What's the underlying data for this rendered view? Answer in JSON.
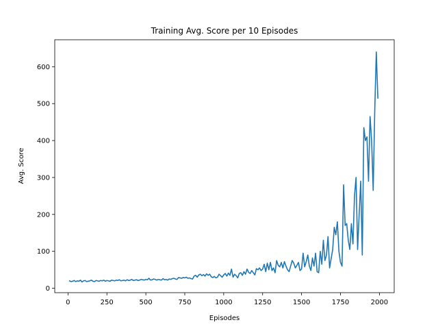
{
  "chart_data": {
    "type": "line",
    "title": "Training Avg. Score per 10 Episodes",
    "xlabel": "Episodes",
    "ylabel": "Avg. Score",
    "xlim": [
      -85,
      2095
    ],
    "ylim": [
      -12,
      673
    ],
    "xticks": [
      0,
      250,
      500,
      750,
      1000,
      1250,
      1500,
      1750,
      2000
    ],
    "yticks": [
      0,
      100,
      200,
      300,
      400,
      500,
      600
    ],
    "grid": false,
    "legend": "none",
    "series": [
      {
        "color": "#1f77b4",
        "x": [
          10,
          20,
          30,
          40,
          50,
          60,
          70,
          80,
          90,
          100,
          110,
          120,
          130,
          140,
          150,
          160,
          170,
          180,
          190,
          200,
          210,
          220,
          230,
          240,
          250,
          260,
          270,
          280,
          290,
          300,
          310,
          320,
          330,
          340,
          350,
          360,
          370,
          380,
          390,
          400,
          410,
          420,
          430,
          440,
          450,
          460,
          470,
          480,
          490,
          500,
          510,
          520,
          530,
          540,
          550,
          560,
          570,
          580,
          590,
          600,
          610,
          620,
          630,
          640,
          650,
          660,
          670,
          680,
          690,
          700,
          710,
          720,
          730,
          740,
          750,
          760,
          770,
          780,
          790,
          800,
          810,
          820,
          830,
          840,
          850,
          860,
          870,
          880,
          890,
          900,
          910,
          920,
          930,
          940,
          950,
          960,
          970,
          980,
          990,
          1000,
          1010,
          1020,
          1030,
          1040,
          1050,
          1060,
          1070,
          1080,
          1090,
          1100,
          1110,
          1120,
          1130,
          1140,
          1150,
          1160,
          1170,
          1180,
          1190,
          1200,
          1210,
          1220,
          1230,
          1240,
          1250,
          1260,
          1270,
          1280,
          1290,
          1300,
          1310,
          1320,
          1330,
          1340,
          1350,
          1360,
          1370,
          1380,
          1390,
          1400,
          1410,
          1420,
          1430,
          1440,
          1450,
          1460,
          1470,
          1480,
          1490,
          1500,
          1510,
          1520,
          1530,
          1540,
          1550,
          1560,
          1570,
          1580,
          1590,
          1600,
          1610,
          1620,
          1630,
          1640,
          1650,
          1660,
          1670,
          1680,
          1690,
          1700,
          1710,
          1720,
          1730,
          1740,
          1750,
          1760,
          1770,
          1780,
          1790,
          1800,
          1810,
          1820,
          1830,
          1840,
          1850,
          1860,
          1870,
          1880,
          1890,
          1900,
          1910,
          1920,
          1930,
          1940,
          1950,
          1960,
          1970,
          1980,
          1990
        ],
        "y": [
          20,
          18,
          19,
          21,
          18,
          20,
          19,
          22,
          17,
          20,
          21,
          18,
          19,
          20,
          22,
          19,
          18,
          21,
          20,
          19,
          21,
          20,
          22,
          19,
          21,
          20,
          19,
          22,
          21,
          20,
          22,
          21,
          23,
          20,
          21,
          22,
          20,
          23,
          21,
          22,
          24,
          21,
          22,
          23,
          21,
          22,
          24,
          23,
          22,
          24,
          23,
          27,
          22,
          23,
          25,
          24,
          22,
          24,
          23,
          22,
          26,
          23,
          24,
          22,
          25,
          24,
          26,
          27,
          25,
          24,
          29,
          28,
          27,
          29,
          28,
          30,
          27,
          28,
          26,
          25,
          33,
          35,
          30,
          36,
          38,
          34,
          37,
          33,
          39,
          35,
          38,
          31,
          29,
          32,
          28,
          30,
          38,
          34,
          30,
          36,
          40,
          33,
          41,
          35,
          52,
          30,
          38,
          34,
          28,
          40,
          42,
          35,
          45,
          38,
          52,
          43,
          40,
          48,
          42,
          36,
          53,
          50,
          55,
          48,
          52,
          65,
          45,
          68,
          50,
          70,
          48,
          55,
          42,
          75,
          62,
          58,
          70,
          55,
          72,
          60,
          50,
          45,
          60,
          75,
          68,
          55,
          62,
          70,
          48,
          52,
          95,
          58,
          72,
          90,
          60,
          48,
          82,
          60,
          95,
          45,
          42,
          100,
          65,
          130,
          75,
          90,
          140,
          55,
          80,
          105,
          165,
          145,
          180,
          100,
          70,
          60,
          280,
          170,
          175,
          130,
          105,
          175,
          120,
          250,
          300,
          105,
          200,
          290,
          90,
          435,
          400,
          410,
          290,
          465,
          400,
          265,
          480,
          640,
          515
        ]
      }
    ]
  }
}
